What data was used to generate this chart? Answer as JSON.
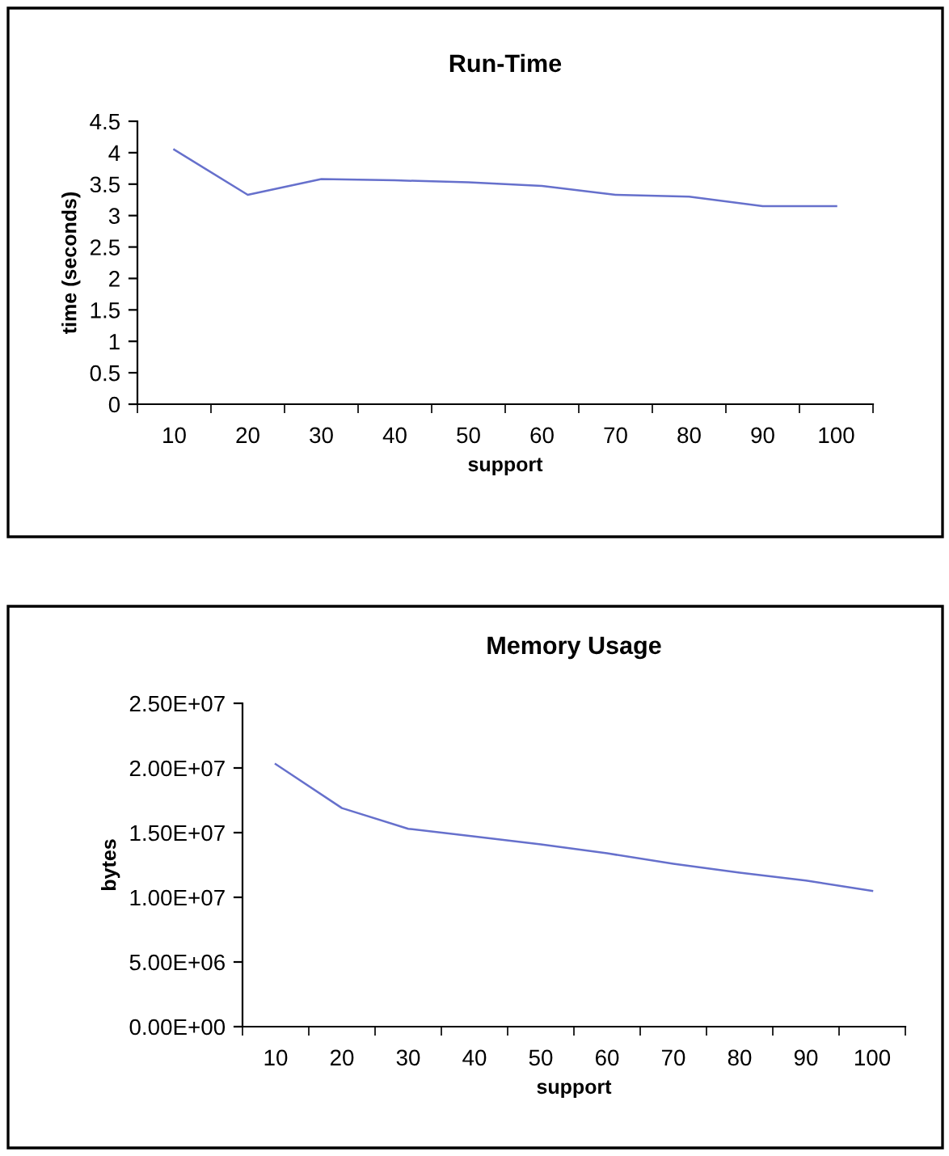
{
  "chart_data": [
    {
      "type": "line",
      "title": "Run-Time",
      "xlabel": "support",
      "ylabel": "time (seconds)",
      "categories": [
        "10",
        "20",
        "30",
        "40",
        "50",
        "60",
        "70",
        "80",
        "90",
        "100"
      ],
      "series": [
        {
          "color": "#6670cc",
          "values": [
            4.05,
            3.33,
            3.58,
            3.56,
            3.53,
            3.47,
            3.33,
            3.3,
            3.15,
            3.15
          ]
        }
      ],
      "ylim": [
        0,
        4.5
      ],
      "yticks": [
        0,
        0.5,
        1,
        1.5,
        2,
        2.5,
        3,
        3.5,
        4,
        4.5
      ],
      "grid": false,
      "legend": false
    },
    {
      "type": "line",
      "title": "Memory Usage",
      "xlabel": "support",
      "ylabel": "bytes",
      "categories": [
        "10",
        "20",
        "30",
        "40",
        "50",
        "60",
        "70",
        "80",
        "90",
        "100"
      ],
      "series": [
        {
          "color": "#6670cc",
          "values": [
            20300000,
            16900000,
            15300000,
            14700000,
            14100000,
            13400000,
            12600000,
            11900000,
            11300000,
            10500000
          ]
        }
      ],
      "ylim": [
        0,
        25000000
      ],
      "yticks": [
        {
          "value": 0,
          "label": "0.00E+00"
        },
        {
          "value": 5000000,
          "label": "5.00E+06"
        },
        {
          "value": 10000000,
          "label": "1.00E+07"
        },
        {
          "value": 15000000,
          "label": "1.50E+07"
        },
        {
          "value": 20000000,
          "label": "2.00E+07"
        },
        {
          "value": 25000000,
          "label": "2.50E+07"
        }
      ],
      "grid": false,
      "legend": false
    }
  ]
}
